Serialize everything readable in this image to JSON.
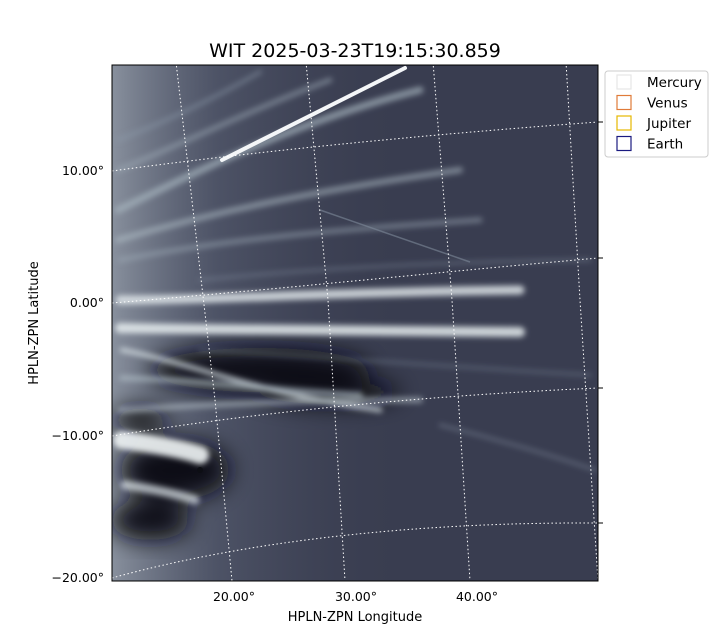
{
  "figure": {
    "title": "WIT 2025-03-23T19:15:30.859",
    "xlabel": "HPLN-ZPN Longitude",
    "ylabel": "HPLN-ZPN Latitude",
    "xticks": [
      "20.00°",
      "30.00°",
      "40.00°"
    ],
    "yticks": [
      "10.00°",
      "0.00°",
      "−10.00°",
      "−20.00°"
    ],
    "legend": [
      {
        "label": "Mercury",
        "color": "#e6e6e6"
      },
      {
        "label": "Venus",
        "color": "#e07b39"
      },
      {
        "label": "Jupiter",
        "color": "#e6b800"
      },
      {
        "label": "Earth",
        "color": "#1a1a80"
      }
    ]
  },
  "image": {
    "colormap": "bone",
    "background_color": "#373b4d",
    "grid_color": "#ffffff",
    "grid_style": "dotted"
  }
}
